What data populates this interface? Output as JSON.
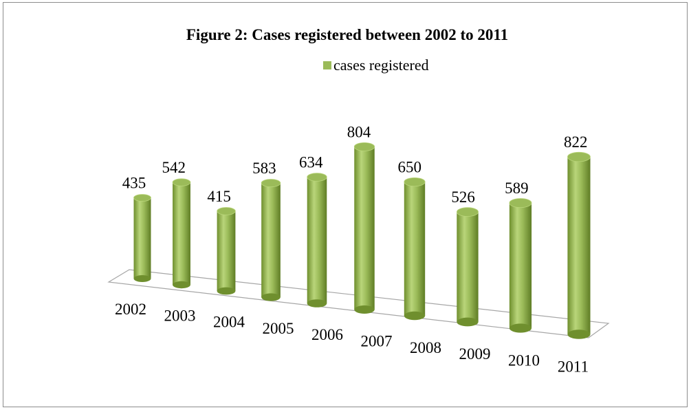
{
  "chart_data": {
    "type": "bar",
    "title": "Figure 2: Cases registered between 2002 to 2011",
    "categories": [
      "2002",
      "2003",
      "2004",
      "2005",
      "2006",
      "2007",
      "2008",
      "2009",
      "2010",
      "2011"
    ],
    "series": [
      {
        "name": "cases registered",
        "color": "#9bbb59",
        "values": [
          435,
          542,
          415,
          583,
          634,
          804,
          650,
          526,
          589,
          822
        ]
      }
    ]
  }
}
